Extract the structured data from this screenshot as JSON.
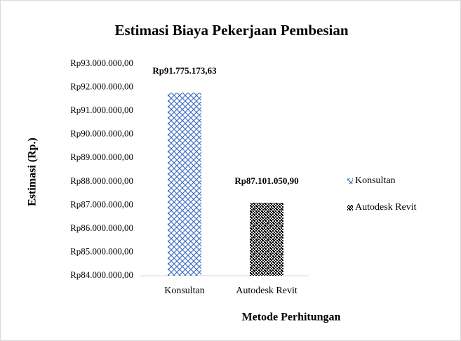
{
  "chart_data": {
    "type": "bar",
    "title": "Estimasi Biaya Pekerjaan Pembesian",
    "x_label": "Metode Perhitungan",
    "y_label": "Estimasi (Rp.)",
    "categories": [
      "Konsultan",
      "Autodesk Revit"
    ],
    "values": [
      91775173.63,
      87101050.9
    ],
    "value_labels": [
      "Rp91.775.173,63",
      "Rp87.101.050,90"
    ],
    "colors": [
      "#4472c4",
      "#000000"
    ],
    "ylim": [
      84000000,
      93000000
    ],
    "yticks": [
      {
        "value": 84000000,
        "label": "Rp84.000.000,00"
      },
      {
        "value": 85000000,
        "label": "Rp85.000.000,00"
      },
      {
        "value": 86000000,
        "label": "Rp86.000.000,00"
      },
      {
        "value": 87000000,
        "label": "Rp87.000.000,00"
      },
      {
        "value": 88000000,
        "label": "Rp88.000.000,00"
      },
      {
        "value": 89000000,
        "label": "Rp89.000.000,00"
      },
      {
        "value": 90000000,
        "label": "Rp90.000.000,00"
      },
      {
        "value": 91000000,
        "label": "Rp91.000.000,00"
      },
      {
        "value": 92000000,
        "label": "Rp92.000.000,00"
      },
      {
        "value": 93000000,
        "label": "Rp93.000.000,00"
      }
    ],
    "grid": false,
    "legend": "right"
  }
}
